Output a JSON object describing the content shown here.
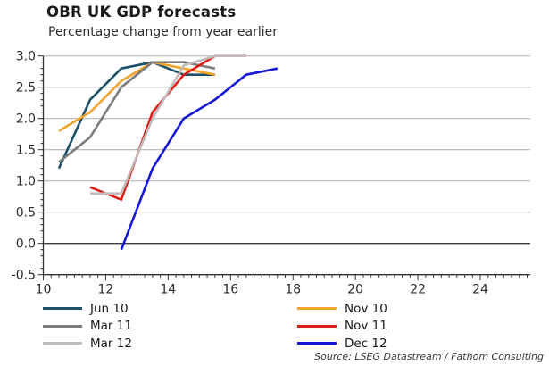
{
  "header": {
    "title": "OBR UK GDP forecasts",
    "subtitle": "Percentage change from year earlier"
  },
  "source_note": "Source: LSEG Datastream / Fathom Consulting",
  "colors": {
    "grid": "#ababab",
    "zero_line": "#3c3c3c",
    "axis": "#333333",
    "tick_label": "#2b2b2b"
  },
  "chart_data": {
    "type": "line",
    "title": "OBR UK GDP forecasts",
    "subtitle": "Percentage change from year earlier",
    "xlabel": "",
    "ylabel": "",
    "xlim": [
      10,
      25.6
    ],
    "ylim": [
      -0.5,
      3.0
    ],
    "x_ticks": [
      10,
      12,
      14,
      16,
      18,
      20,
      22,
      24
    ],
    "y_ticks": [
      -0.5,
      0.0,
      0.5,
      1.0,
      1.5,
      2.0,
      2.5,
      3.0
    ],
    "x_minor_step": 0.25,
    "y_minor_step": 0.1,
    "grid": "horizontal",
    "legend_position": "bottom",
    "series": [
      {
        "name": "Jun 10",
        "color": "#1d5068",
        "x": [
          10.5,
          11.5,
          12.5,
          13.5,
          14.5,
          15.5
        ],
        "values": [
          1.2,
          2.3,
          2.8,
          2.9,
          2.7,
          2.7
        ]
      },
      {
        "name": "Nov 10",
        "color": "#f3a42a",
        "x": [
          10.5,
          11.5,
          12.5,
          13.5,
          14.5,
          15.5
        ],
        "values": [
          1.8,
          2.1,
          2.6,
          2.9,
          2.8,
          2.7
        ]
      },
      {
        "name": "Mar 11",
        "color": "#7d7d7d",
        "x": [
          10.5,
          11.5,
          12.5,
          13.5,
          14.5,
          15.5
        ],
        "values": [
          1.3,
          1.7,
          2.5,
          2.9,
          2.9,
          2.8
        ]
      },
      {
        "name": "Nov 11",
        "color": "#dd1d16",
        "x": [
          11.5,
          12.5,
          13.5,
          14.5,
          15.5,
          16.5
        ],
        "values": [
          0.9,
          0.7,
          2.1,
          2.7,
          3.0,
          3.0
        ]
      },
      {
        "name": "Mar 12",
        "color": "#c3bbb9",
        "x": [
          11.5,
          12.5,
          13.5,
          14.5,
          15.5,
          16.5
        ],
        "values": [
          0.8,
          0.8,
          2.0,
          2.85,
          3.0,
          3.0
        ]
      },
      {
        "name": "Dec 12",
        "color": "#1616d6",
        "x": [
          12.5,
          13.5,
          14.5,
          15.5,
          16.5,
          17.5
        ],
        "values": [
          -0.1,
          1.2,
          2.0,
          2.3,
          2.7,
          2.8
        ]
      }
    ]
  },
  "legend": {
    "columns": [
      [
        "Jun 10",
        "Mar 11",
        "Mar 12"
      ],
      [
        "Nov 10",
        "Nov 11",
        "Dec 12"
      ]
    ]
  }
}
